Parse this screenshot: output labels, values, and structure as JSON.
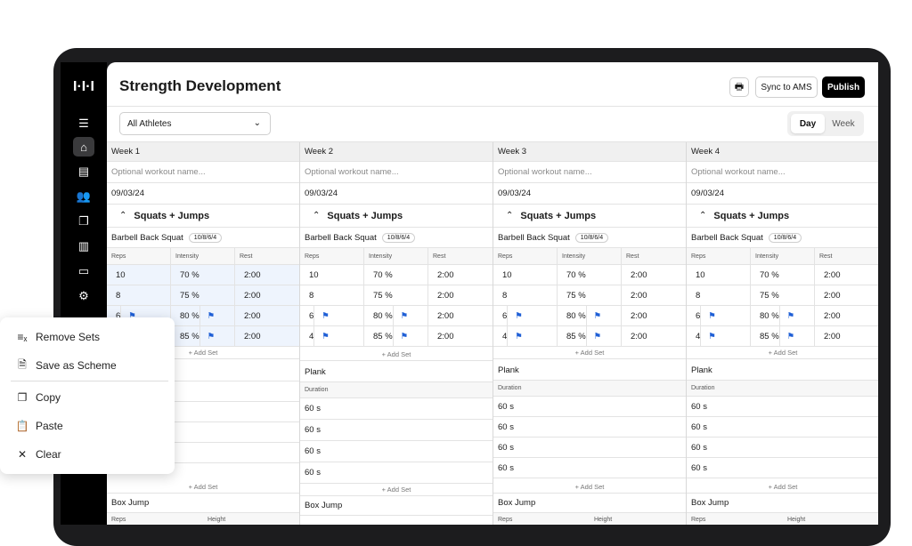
{
  "page_title": "Strength Development",
  "toolbar": {
    "sync_label": "Sync to AMS",
    "publish_label": "Publish",
    "print_icon": "printer-icon"
  },
  "filter": {
    "athletes_value": "All Athletes",
    "view_day": "Day",
    "view_week": "Week"
  },
  "rail_icons": [
    "home-icon",
    "clipboard-icon",
    "users-icon",
    "copy-icon",
    "chart-icon",
    "tablet-icon",
    "gear-icon"
  ],
  "weeks": [
    {
      "label": "Week 1",
      "name_placeholder": "Optional workout name...",
      "date": "09/03/24"
    },
    {
      "label": "Week 2",
      "name_placeholder": "Optional workout name...",
      "date": "09/03/24"
    },
    {
      "label": "Week 3",
      "name_placeholder": "Optional workout name...",
      "date": "09/03/24"
    },
    {
      "label": "Week 4",
      "name_placeholder": "Optional workout name...",
      "date": "09/03/24"
    }
  ],
  "block": {
    "title": "Squats + Jumps"
  },
  "exercise1": {
    "name": "Barbell Back Squat",
    "scheme": "10/8/6/4",
    "headers": [
      "Reps",
      "Intensity",
      "Rest"
    ],
    "rows": [
      [
        "10",
        "70 %",
        "2:00"
      ],
      [
        "8",
        "75 %",
        "2:00"
      ],
      [
        "6",
        "80 %",
        "2:00"
      ],
      [
        "4",
        "85 %",
        "2:00"
      ]
    ]
  },
  "add_set": "+ Add Set",
  "exercise2": {
    "name": "Plank",
    "header": "Duration",
    "rows": [
      "60 s",
      "60 s",
      "60 s",
      "60 s"
    ]
  },
  "exercise3": {
    "name": "Box Jump",
    "headers": [
      "Reps",
      "Height"
    ]
  },
  "context_menu": {
    "items": [
      {
        "label": "Remove Sets",
        "icon": "remove-sets-icon"
      },
      {
        "label": "Save as Scheme",
        "icon": "save-scheme-icon"
      },
      {
        "label": "Copy",
        "icon": "copy-icon"
      },
      {
        "label": "Paste",
        "icon": "paste-icon"
      },
      {
        "label": "Clear",
        "icon": "close-icon"
      }
    ]
  }
}
